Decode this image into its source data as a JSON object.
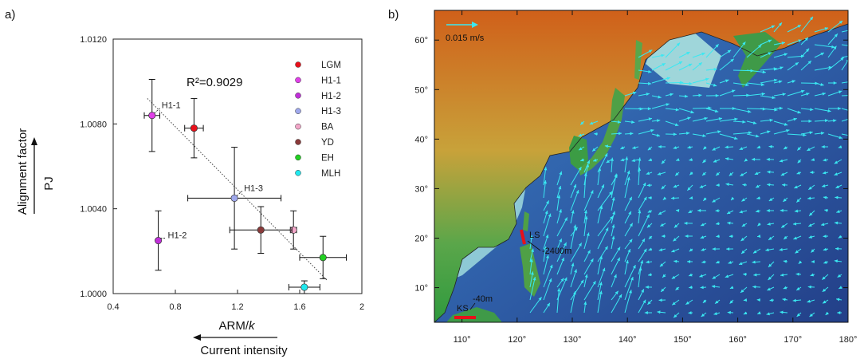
{
  "panels": {
    "a_label": "a)",
    "b_label": "b)"
  },
  "chart_data": [
    {
      "type": "scatter",
      "panel": "a",
      "xlabel": "ARM/k",
      "xlabel_main": "ARM/",
      "xlabel_italic": "k",
      "ylabel": "Alignment factor",
      "ylabel_arrow": "PJ",
      "xlabel_arrow": "Current intensity",
      "xlim": [
        0.4,
        2.0
      ],
      "ylim": [
        1.0,
        1.012
      ],
      "x_ticks": [
        "0.4",
        "0.8",
        "1.2",
        "1.6",
        "2"
      ],
      "x_tick_values": [
        0.4,
        0.8,
        1.2,
        1.6,
        2.0
      ],
      "y_ticks": [
        "1.0000",
        "1.0040",
        "1.0080",
        "1.0120"
      ],
      "y_tick_values": [
        1.0,
        1.004,
        1.008,
        1.012
      ],
      "r2_text": "R²=0.9029",
      "trendline": [
        [
          0.62,
          1.0092
        ],
        [
          1.78,
          1.0006
        ]
      ],
      "legend": [
        {
          "name": "LGM",
          "color": "#e8101a"
        },
        {
          "name": "H1-1",
          "color": "#e040e8"
        },
        {
          "name": "H1-2",
          "color": "#c030d8"
        },
        {
          "name": "H1-3",
          "color": "#9fa8ec"
        },
        {
          "name": "BA",
          "color": "#f2a6c8"
        },
        {
          "name": "YD",
          "color": "#8a3a3a"
        },
        {
          "name": "EH",
          "color": "#22d022"
        },
        {
          "name": "MLH",
          "color": "#20e8ee"
        }
      ],
      "points": [
        {
          "name": "LGM",
          "x": 0.92,
          "y": 1.0078,
          "xerr": 0.06,
          "yerr": 0.0014,
          "color": "#e8101a"
        },
        {
          "name": "H1-1",
          "x": 0.65,
          "y": 1.0084,
          "xerr": 0.05,
          "yerr": 0.0017,
          "color": "#e040e8"
        },
        {
          "name": "H1-2",
          "x": 0.69,
          "y": 1.0025,
          "xerr": 0.0,
          "yerr": 0.0014,
          "color": "#c030d8"
        },
        {
          "name": "H1-3",
          "x": 1.18,
          "y": 1.0045,
          "xerr": 0.3,
          "yerr": 0.0024,
          "color": "#9fa8ec"
        },
        {
          "name": "BA",
          "x": 1.56,
          "y": 1.003,
          "xerr": 0.02,
          "yerr": 0.0009,
          "color": "#f2a6c8"
        },
        {
          "name": "YD",
          "x": 1.35,
          "y": 1.003,
          "xerr": 0.2,
          "yerr": 0.0011,
          "color": "#8a3a3a"
        },
        {
          "name": "EH",
          "x": 1.75,
          "y": 1.0017,
          "xerr": 0.15,
          "yerr": 0.001,
          "color": "#22d022"
        },
        {
          "name": "MLH",
          "x": 1.63,
          "y": 1.0003,
          "xerr": 0.1,
          "yerr": 0.0003,
          "color": "#20e8ee"
        }
      ],
      "annotations": [
        "H1-1",
        "H1-3",
        "H1-2"
      ]
    },
    {
      "type": "map",
      "panel": "b",
      "lon_ticks": [
        "110°",
        "120°",
        "130°",
        "140°",
        "150°",
        "160°",
        "170°",
        "180°"
      ],
      "lon_values": [
        110,
        120,
        130,
        140,
        150,
        160,
        170,
        180
      ],
      "lat_ticks": [
        "10°",
        "20°",
        "30°",
        "40°",
        "50°",
        "60°"
      ],
      "lat_values": [
        10,
        20,
        30,
        40,
        50,
        60
      ],
      "lon_range": [
        105,
        180
      ],
      "lat_range": [
        3,
        66
      ],
      "scale_label": "0.015 m/s",
      "sites": [
        {
          "name": "LS",
          "depth": "-2400m",
          "color": "#e8101a"
        },
        {
          "name": "KS",
          "depth": "-40m",
          "color": "#e8101a"
        }
      ],
      "arrow_color": "#3ae8f2"
    }
  ]
}
